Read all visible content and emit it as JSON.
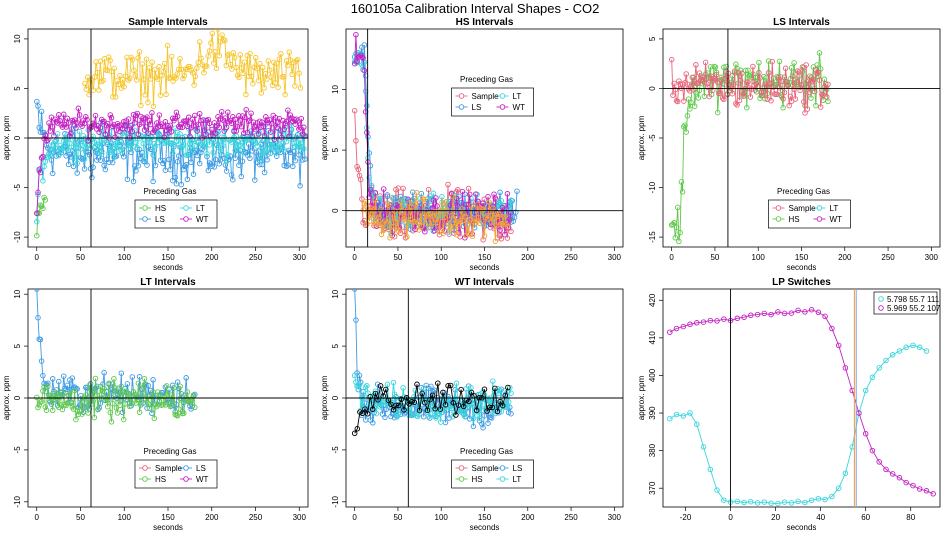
{
  "figure_title": "160105a   Calibration Interval Shapes - CO2",
  "colors": {
    "Sample": "#e8647a",
    "HS": "#5fc94a",
    "LS": "#3d9be3",
    "LT": "#38d6dd",
    "WT": "#c421c4",
    "gold": "#f6c52c",
    "black": "#000000",
    "orange": "#f2a431",
    "blue_line": "#8aa3ff"
  },
  "chart_data": [
    {
      "id": "p1",
      "type": "scatter",
      "title": "Sample Intervals",
      "xlabel": "seconds",
      "ylabel": "approx. ppm",
      "xlim": [
        -10,
        310
      ],
      "ylim": [
        -11,
        11
      ],
      "xticks": [
        0,
        50,
        100,
        150,
        200,
        250,
        300
      ],
      "yticks": [
        -10,
        -5,
        0,
        5,
        10
      ],
      "vline": 62,
      "hline": 0,
      "legend": {
        "title": "Preceding Gas",
        "entries": [
          "HS",
          "LT",
          "LS",
          "WT"
        ],
        "position": "bottom-center"
      },
      "series": [
        {
          "name": "HS",
          "color_key": "HS",
          "n": 8,
          "t0": 0,
          "dt": 1.4,
          "start": -10,
          "end": -6,
          "tau": 4,
          "noise": 1.5
        },
        {
          "name": "LS",
          "color_key": "LS",
          "n": 220,
          "t0": 0,
          "dt": 1.4,
          "start": 3.5,
          "end": -1.7,
          "tau": 8,
          "noise": 2.6
        },
        {
          "name": "LT",
          "color_key": "LT",
          "n": 220,
          "t0": 0,
          "dt": 1.4,
          "start": -8,
          "end": -0.3,
          "tau": 6,
          "noise": 1.6
        },
        {
          "name": "WT",
          "color_key": "WT",
          "n": 220,
          "t0": 0,
          "dt": 1.4,
          "start": -7,
          "end": 1.4,
          "tau": 6,
          "noise": 1.3
        },
        {
          "name": "Gold",
          "color_key": "gold",
          "n": 155,
          "t0": 55,
          "dt": 1.6,
          "start": -11,
          "end": 6.2,
          "tau": 4,
          "noise": 2.4,
          "bump": 2.6
        }
      ]
    },
    {
      "id": "p2",
      "type": "scatter",
      "title": "HS Intervals",
      "xlabel": "seconds",
      "ylabel": "approx. ppm",
      "xlim": [
        -10,
        310
      ],
      "ylim": [
        -3,
        15
      ],
      "xticks": [
        0,
        50,
        100,
        150,
        200,
        250,
        300
      ],
      "yticks": [
        0,
        5,
        10
      ],
      "vline": 15,
      "hline": 0,
      "legend": {
        "title": "Preceding Gas",
        "entries": [
          "Sample",
          "LT",
          "LS",
          "WT"
        ],
        "position": "top-center"
      },
      "series": [
        {
          "name": "Sample",
          "color_key": "Sample",
          "n": 130,
          "t0": 0,
          "dt": 1.4,
          "start": 8,
          "end": -0.6,
          "tau": 5,
          "noise": 2.2
        },
        {
          "name": "LS",
          "color_key": "LS",
          "n": 135,
          "t0": 0,
          "dt": 1.4,
          "start": 13,
          "end": -0.1,
          "tau": 4,
          "noise": 1.6,
          "hold": 12
        },
        {
          "name": "LT",
          "color_key": "LT",
          "n": 130,
          "t0": 0,
          "dt": 1.4,
          "start": 12.8,
          "end": -0.1,
          "tau": 4,
          "noise": 1.4,
          "hold": 11
        },
        {
          "name": "WT",
          "color_key": "WT",
          "n": 130,
          "t0": 0,
          "dt": 1.4,
          "start": 12.5,
          "end": -0.2,
          "tau": 4,
          "noise": 1.6,
          "hold": 11
        },
        {
          "name": "Orange",
          "color_key": "orange",
          "n": 120,
          "t0": 10,
          "dt": 1.4,
          "start": 0,
          "end": -0.5,
          "tau": 4,
          "noise": 1.6
        }
      ]
    },
    {
      "id": "p3",
      "type": "scatter",
      "title": "LS Intervals",
      "xlabel": "seconds",
      "ylabel": "approx. ppm",
      "xlim": [
        -10,
        310
      ],
      "ylim": [
        -16,
        6
      ],
      "xticks": [
        0,
        50,
        100,
        150,
        200,
        250,
        300
      ],
      "yticks": [
        -15,
        -10,
        -5,
        0,
        5
      ],
      "vline": 65,
      "hline": 0,
      "legend": {
        "title": "Preceding Gas",
        "entries": [
          "Sample",
          "LT",
          "HS",
          "WT"
        ],
        "position": "bottom-center"
      },
      "series": [
        {
          "name": "HS",
          "color_key": "HS",
          "n": 130,
          "t0": 0,
          "dt": 1.4,
          "start": -14,
          "end": 0.6,
          "tau": 5,
          "noise": 2.4,
          "hold": 10
        },
        {
          "name": "Sample",
          "color_key": "Sample",
          "n": 130,
          "t0": 0,
          "dt": 1.4,
          "start": 0.4,
          "end": 0.3,
          "tau": 5,
          "noise": 2.2
        }
      ]
    },
    {
      "id": "p4",
      "type": "scatter",
      "title": "LT Intervals",
      "xlabel": "seconds",
      "ylabel": "approx. ppm",
      "xlim": [
        -10,
        310
      ],
      "ylim": [
        -10.5,
        10.5
      ],
      "xticks": [
        0,
        50,
        100,
        150,
        200,
        250,
        300
      ],
      "yticks": [
        -10,
        -5,
        0,
        5,
        10
      ],
      "vline": 62,
      "hline": 0,
      "legend": {
        "title": "Preceding Gas",
        "entries": [
          "Sample",
          "LS",
          "HS",
          "WT"
        ],
        "position": "bottom-center"
      },
      "series": [
        {
          "name": "LS",
          "color_key": "LS",
          "n": 130,
          "t0": 0,
          "dt": 1.4,
          "start": 13,
          "end": 0.4,
          "tau": 3.5,
          "noise": 1.8
        },
        {
          "name": "HS",
          "color_key": "HS",
          "n": 130,
          "t0": 0,
          "dt": 1.4,
          "start": -0.5,
          "end": -0.3,
          "tau": 5,
          "noise": 1.8
        }
      ]
    },
    {
      "id": "p5",
      "type": "scatter",
      "title": "WT Intervals",
      "xlabel": "seconds",
      "ylabel": "approx. ppm",
      "xlim": [
        -10,
        310
      ],
      "ylim": [
        -10.5,
        10.5
      ],
      "xticks": [
        0,
        50,
        100,
        150,
        200,
        250,
        300
      ],
      "yticks": [
        -10,
        -5,
        0,
        5,
        10
      ],
      "vline": 62,
      "hline": 0,
      "legend": {
        "title": "Preceding Gas",
        "entries": [
          "Sample",
          "LS",
          "HS",
          "LT"
        ],
        "position": "bottom-center"
      },
      "series": [
        {
          "name": "LS",
          "color_key": "LS",
          "n": 130,
          "t0": 0,
          "dt": 1.4,
          "start": 11,
          "end": -0.8,
          "tau": 3.5,
          "noise": 1.8
        },
        {
          "name": "LT",
          "color_key": "LT",
          "n": 130,
          "t0": 0,
          "dt": 1.4,
          "start": 2,
          "end": -0.4,
          "tau": 5,
          "noise": 1.6
        },
        {
          "name": "Black",
          "color_key": "black",
          "n": 60,
          "t0": 0,
          "dt": 3,
          "start": -3,
          "end": 0.1,
          "tau": 5,
          "noise": 1.7
        }
      ]
    },
    {
      "id": "p6",
      "type": "scatter",
      "title": "LP Switches",
      "xlabel": "seconds",
      "ylabel": "approx. ppm",
      "xlim": [
        -30,
        93
      ],
      "ylim": [
        365,
        423
      ],
      "xticks": [
        -20,
        0,
        20,
        40,
        60,
        80
      ],
      "yticks": [
        370,
        380,
        390,
        400,
        410,
        420
      ],
      "vline": 0,
      "vline_color_key": "black",
      "markers": [
        {
          "x": 55.0,
          "color_key": "orange"
        },
        {
          "x": 55.8,
          "color_key": "blue_line"
        }
      ],
      "legend": {
        "entries": [
          "5.798 55.7 111",
          "5.969 55.2 107"
        ],
        "keys": [
          "LT",
          "WT"
        ],
        "position": "top-right"
      },
      "series": [
        {
          "name": "LT switch",
          "color_key": "LT",
          "x": [
            -27,
            -24,
            -21,
            -18,
            -15,
            -12,
            -9,
            -6,
            -3,
            0,
            3,
            6,
            9,
            12,
            15,
            18,
            21,
            24,
            27,
            30,
            33,
            36,
            39,
            42,
            45,
            48,
            51,
            54,
            57,
            60,
            63,
            66,
            69,
            72,
            75,
            78,
            81,
            84,
            87
          ],
          "y": [
            388.5,
            389.6,
            389.2,
            390,
            387,
            381,
            375,
            369.5,
            366.8,
            366.3,
            366.5,
            366.2,
            366.4,
            366.1,
            366.3,
            366,
            365.9,
            366.3,
            366.1,
            366.5,
            366.2,
            366.8,
            367.2,
            367,
            367.8,
            370,
            374,
            381,
            390,
            396,
            399.5,
            402,
            404,
            405.5,
            406.5,
            407.5,
            408,
            407.5,
            406.5
          ]
        },
        {
          "name": "WT switch",
          "color_key": "WT",
          "x": [
            -27,
            -24,
            -21,
            -18,
            -15,
            -12,
            -9,
            -6,
            -3,
            0,
            3,
            6,
            9,
            12,
            15,
            18,
            21,
            24,
            27,
            30,
            33,
            36,
            39,
            42,
            45,
            48,
            51,
            54,
            57,
            60,
            63,
            66,
            69,
            72,
            75,
            78,
            81,
            84,
            87,
            90
          ],
          "y": [
            411.5,
            412.5,
            413,
            413.6,
            414,
            414.2,
            414.6,
            414.5,
            415,
            414.6,
            415.2,
            415.5,
            416,
            416.2,
            416.5,
            416.2,
            416.9,
            416.5,
            416.6,
            417.3,
            416.9,
            417.5,
            416.8,
            415.7,
            412.5,
            408,
            402,
            396,
            390,
            384.5,
            380,
            377,
            375,
            373.8,
            372.8,
            371.5,
            370.7,
            369.8,
            369.3,
            368.5
          ]
        }
      ]
    }
  ]
}
